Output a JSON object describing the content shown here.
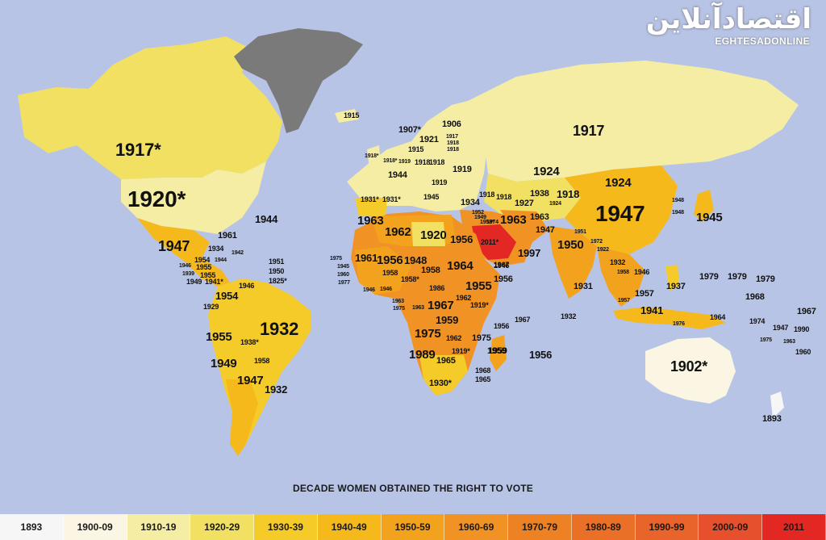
{
  "watermark": {
    "name_fa": "اقتصادآنلاین",
    "name_en": "EGHTESADONLINE"
  },
  "title": "DECADE WOMEN OBTAINED THE RIGHT TO VOTE",
  "legend": [
    {
      "label": "1893",
      "color": "#f6f6f6"
    },
    {
      "label": "1900-09",
      "color": "#fbf6e4"
    },
    {
      "label": "1910-19",
      "color": "#f4eda3"
    },
    {
      "label": "1920-29",
      "color": "#f1e062"
    },
    {
      "label": "1930-39",
      "color": "#f5cb2a"
    },
    {
      "label": "1940-49",
      "color": "#f6b91c"
    },
    {
      "label": "1950-59",
      "color": "#f3a21e"
    },
    {
      "label": "1960-69",
      "color": "#f09324"
    },
    {
      "label": "1970-79",
      "color": "#ec8223"
    },
    {
      "label": "1980-89",
      "color": "#ea7027"
    },
    {
      "label": "1990-99",
      "color": "#e8642b"
    },
    {
      "label": "2000-09",
      "color": "#e6502d"
    },
    {
      "label": "2011",
      "color": "#e32722"
    }
  ],
  "colors": {
    "ocean": "#b8c4e6",
    "no_data": "#7a7a7a"
  },
  "map_labels": [
    {
      "id": "canada",
      "text": "1917*"
    },
    {
      "id": "usa",
      "text": "1920*"
    },
    {
      "id": "mexico",
      "text": "1947"
    },
    {
      "id": "bermuda",
      "text": "1944"
    },
    {
      "id": "cuba",
      "text": "1961"
    },
    {
      "id": "iceland",
      "text": "1915"
    },
    {
      "id": "haiti",
      "text": "1934"
    },
    {
      "id": "jamaica",
      "text": "1944"
    },
    {
      "id": "dom-rep",
      "text": "1942"
    },
    {
      "id": "caribbean-1",
      "text": "1951"
    },
    {
      "id": "caribbean-2",
      "text": "1950"
    },
    {
      "id": "caribbean-3",
      "text": "1825*"
    },
    {
      "id": "guatemala",
      "text": "1946"
    },
    {
      "id": "belize",
      "text": "1954"
    },
    {
      "id": "honduras",
      "text": "1955"
    },
    {
      "id": "el-salvador",
      "text": "1939"
    },
    {
      "id": "nicaragua",
      "text": "1955"
    },
    {
      "id": "costa-rica",
      "text": "1949"
    },
    {
      "id": "panama",
      "text": "1941*"
    },
    {
      "id": "venezuela-x",
      "text": "1946"
    },
    {
      "id": "colombia",
      "text": "1954"
    },
    {
      "id": "ecuador",
      "text": "1929"
    },
    {
      "id": "peru",
      "text": "1955"
    },
    {
      "id": "brazil",
      "text": "1932"
    },
    {
      "id": "bolivia",
      "text": "1938*"
    },
    {
      "id": "paraguay",
      "text": "1958"
    },
    {
      "id": "chile",
      "text": "1949"
    },
    {
      "id": "argentina",
      "text": "1947"
    },
    {
      "id": "uruguay",
      "text": "1932"
    },
    {
      "id": "norway",
      "text": "1907*"
    },
    {
      "id": "sweden",
      "text": "1921"
    },
    {
      "id": "finland",
      "text": "1906"
    },
    {
      "id": "baltic-1",
      "text": "1917"
    },
    {
      "id": "baltic-2",
      "text": "1918"
    },
    {
      "id": "baltic-3",
      "text": "1918"
    },
    {
      "id": "denmark",
      "text": "1915"
    },
    {
      "id": "ireland",
      "text": "1918*"
    },
    {
      "id": "uk",
      "text": "1918*"
    },
    {
      "id": "netherlands",
      "text": "1919"
    },
    {
      "id": "germany",
      "text": "1918"
    },
    {
      "id": "poland",
      "text": "1918"
    },
    {
      "id": "belarus",
      "text": "1919"
    },
    {
      "id": "france",
      "text": "1944"
    },
    {
      "id": "central-eu",
      "text": "1919"
    },
    {
      "id": "portugal",
      "text": "1931*"
    },
    {
      "id": "spain",
      "text": "1931*"
    },
    {
      "id": "italy",
      "text": "1945"
    },
    {
      "id": "turkey",
      "text": "1934"
    },
    {
      "id": "georgia",
      "text": "1918"
    },
    {
      "id": "azerbaijan",
      "text": "1918"
    },
    {
      "id": "russia",
      "text": "1917"
    },
    {
      "id": "kazakhstan",
      "text": "1924"
    },
    {
      "id": "mongolia",
      "text": "1924"
    },
    {
      "id": "uzbekistan",
      "text": "1938"
    },
    {
      "id": "kyrgyzstan",
      "text": "1918"
    },
    {
      "id": "tajikistan",
      "text": "1924"
    },
    {
      "id": "turkmenistan",
      "text": "1927"
    },
    {
      "id": "iran",
      "text": "1963"
    },
    {
      "id": "afghanistan",
      "text": "1963"
    },
    {
      "id": "pakistan",
      "text": "1947"
    },
    {
      "id": "china",
      "text": "1947"
    },
    {
      "id": "korea",
      "text": "1948"
    },
    {
      "id": "korea-2",
      "text": "1948"
    },
    {
      "id": "japan",
      "text": "1945"
    },
    {
      "id": "india",
      "text": "1950"
    },
    {
      "id": "nepal",
      "text": "1951"
    },
    {
      "id": "bangladesh",
      "text": "1972"
    },
    {
      "id": "myanmar",
      "text": "1922"
    },
    {
      "id": "thailand",
      "text": "1932"
    },
    {
      "id": "vietnam",
      "text": "1946"
    },
    {
      "id": "laos",
      "text": "1958"
    },
    {
      "id": "philippines",
      "text": "1937"
    },
    {
      "id": "malaysia",
      "text": "1957"
    },
    {
      "id": "sri-lanka",
      "text": "1931"
    },
    {
      "id": "indonesia",
      "text": "1941"
    },
    {
      "id": "sumatra",
      "text": "1957"
    },
    {
      "id": "timor",
      "text": "1976"
    },
    {
      "id": "png",
      "text": "1964"
    },
    {
      "id": "morocco",
      "text": "1963"
    },
    {
      "id": "algeria",
      "text": "1962"
    },
    {
      "id": "libya",
      "text": "1920"
    },
    {
      "id": "egypt",
      "text": "1956"
    },
    {
      "id": "saudi",
      "text": "2011*"
    },
    {
      "id": "yemen",
      "text": "1967"
    },
    {
      "id": "oman",
      "text": "1997"
    },
    {
      "id": "lebanon",
      "text": "1952"
    },
    {
      "id": "syria",
      "text": "1949"
    },
    {
      "id": "israel",
      "text": "1958*"
    },
    {
      "id": "jordan",
      "text": "1974"
    },
    {
      "id": "mauritania",
      "text": "1961"
    },
    {
      "id": "mali",
      "text": "1956"
    },
    {
      "id": "niger",
      "text": "1948"
    },
    {
      "id": "chad",
      "text": "1958"
    },
    {
      "id": "sudan",
      "text": "1964"
    },
    {
      "id": "eritrea",
      "text": "1955"
    },
    {
      "id": "ethiopia",
      "text": "1956"
    },
    {
      "id": "djibouti",
      "text": "1946"
    },
    {
      "id": "senegal",
      "text": "1975"
    },
    {
      "id": "gambia",
      "text": "1945"
    },
    {
      "id": "guinea-b",
      "text": "1960"
    },
    {
      "id": "guinea",
      "text": "1977"
    },
    {
      "id": "sierra-leone",
      "text": "1946"
    },
    {
      "id": "burkina",
      "text": "1958"
    },
    {
      "id": "nigeria",
      "text": "1958*"
    },
    {
      "id": "cameroon",
      "text": "1946"
    },
    {
      "id": "car",
      "text": "1986"
    },
    {
      "id": "drc",
      "text": "1967"
    },
    {
      "id": "uganda",
      "text": "1962"
    },
    {
      "id": "kenya",
      "text": "1919*"
    },
    {
      "id": "gabon",
      "text": "1963"
    },
    {
      "id": "congo",
      "text": "1975"
    },
    {
      "id": "eq-guinea",
      "text": "1963"
    },
    {
      "id": "angola",
      "text": "1975"
    },
    {
      "id": "zambia",
      "text": "1962"
    },
    {
      "id": "tanzania",
      "text": "1959"
    },
    {
      "id": "malawi",
      "text": "1975"
    },
    {
      "id": "namibia",
      "text": "1989"
    },
    {
      "id": "zimbabwe",
      "text": "1919*"
    },
    {
      "id": "botswana",
      "text": "1965"
    },
    {
      "id": "mozambique",
      "text": "1959"
    },
    {
      "id": "south-africa",
      "text": "1930*"
    },
    {
      "id": "swaziland",
      "text": "1968"
    },
    {
      "id": "lesotho",
      "text": "1965"
    },
    {
      "id": "seychelles",
      "text": "1967"
    },
    {
      "id": "comoros",
      "text": "1956"
    },
    {
      "id": "maldives",
      "text": "1932"
    },
    {
      "id": "madagascar",
      "text": "1959"
    },
    {
      "id": "mauritius",
      "text": "1956"
    },
    {
      "id": "micronesia",
      "text": "1979"
    },
    {
      "id": "marshall",
      "text": "1979"
    },
    {
      "id": "kiribati",
      "text": "1979"
    },
    {
      "id": "nauru",
      "text": "1968"
    },
    {
      "id": "tuvalu",
      "text": "1967"
    },
    {
      "id": "solomon",
      "text": "1974"
    },
    {
      "id": "fiji",
      "text": "1947"
    },
    {
      "id": "fiji-2",
      "text": "1990"
    },
    {
      "id": "vanuatu",
      "text": "1975"
    },
    {
      "id": "tonga",
      "text": "1963"
    },
    {
      "id": "samoa",
      "text": "1960"
    },
    {
      "id": "australia",
      "text": "1902*"
    },
    {
      "id": "new-zealand",
      "text": "1893"
    }
  ]
}
